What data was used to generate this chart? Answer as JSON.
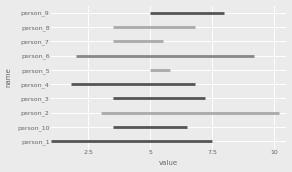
{
  "persons": [
    "person_9",
    "person_8",
    "person_7",
    "person_6",
    "person_5",
    "person_4",
    "person_3",
    "person_2",
    "person_10",
    "person_1"
  ],
  "starts": [
    5.0,
    3.5,
    3.5,
    2.0,
    5.0,
    1.8,
    3.5,
    3.0,
    3.5,
    1.0
  ],
  "ends": [
    8.0,
    6.8,
    5.5,
    9.2,
    5.8,
    6.8,
    7.2,
    10.2,
    6.5,
    7.5
  ],
  "colors": [
    "#555555",
    "#aaaaaa",
    "#aaaaaa",
    "#888888",
    "#aaaaaa",
    "#555555",
    "#555555",
    "#aaaaaa",
    "#555555",
    "#555555"
  ],
  "xlim": [
    1.0,
    10.5
  ],
  "xticks": [
    2.5,
    5.0,
    7.5,
    10.0
  ],
  "xlabel": "value",
  "ylabel": "name",
  "bg_color": "#ebebeb",
  "panel_bg": "#ebebeb",
  "grid_color": "#ffffff",
  "linewidth": 2.0,
  "axis_fontsize": 5,
  "tick_fontsize": 4.5
}
